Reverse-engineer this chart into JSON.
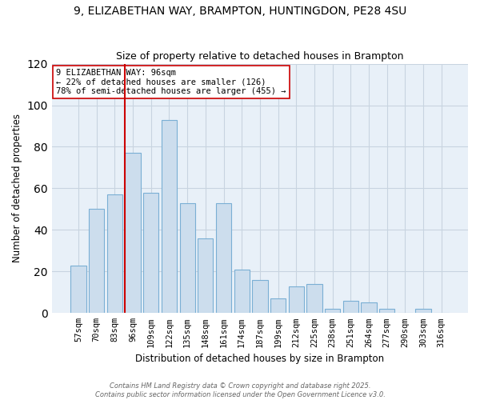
{
  "title": "9, ELIZABETHAN WAY, BRAMPTON, HUNTINGDON, PE28 4SU",
  "subtitle": "Size of property relative to detached houses in Brampton",
  "xlabel": "Distribution of detached houses by size in Brampton",
  "ylabel": "Number of detached properties",
  "bar_labels": [
    "57sqm",
    "70sqm",
    "83sqm",
    "96sqm",
    "109sqm",
    "122sqm",
    "135sqm",
    "148sqm",
    "161sqm",
    "174sqm",
    "187sqm",
    "199sqm",
    "212sqm",
    "225sqm",
    "238sqm",
    "251sqm",
    "264sqm",
    "277sqm",
    "290sqm",
    "303sqm",
    "316sqm"
  ],
  "bar_values": [
    23,
    50,
    57,
    77,
    58,
    93,
    53,
    36,
    53,
    21,
    16,
    7,
    13,
    14,
    2,
    6,
    5,
    2,
    0,
    2,
    0
  ],
  "bar_color": "#ccdded",
  "bar_edge_color": "#7aafd4",
  "highlight_index": 3,
  "highlight_line_color": "#cc0000",
  "annotation_line1": "9 ELIZABETHAN WAY: 96sqm",
  "annotation_line2": "← 22% of detached houses are smaller (126)",
  "annotation_line3": "78% of semi-detached houses are larger (455) →",
  "annotation_box_color": "#ffffff",
  "annotation_box_edge": "#cc0000",
  "ylim": [
    0,
    120
  ],
  "yticks": [
    0,
    20,
    40,
    60,
    80,
    100,
    120
  ],
  "grid_color": "#c8d4e0",
  "bg_color": "#e8f0f8",
  "footer": "Contains HM Land Registry data © Crown copyright and database right 2025.\nContains public sector information licensed under the Open Government Licence v3.0."
}
